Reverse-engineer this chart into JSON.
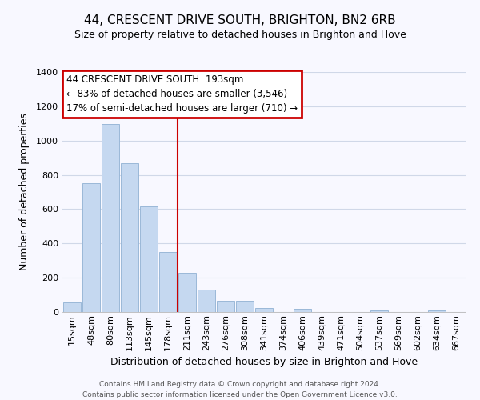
{
  "title": "44, CRESCENT DRIVE SOUTH, BRIGHTON, BN2 6RB",
  "subtitle": "Size of property relative to detached houses in Brighton and Hove",
  "xlabel": "Distribution of detached houses by size in Brighton and Hove",
  "ylabel": "Number of detached properties",
  "bar_labels": [
    "15sqm",
    "48sqm",
    "80sqm",
    "113sqm",
    "145sqm",
    "178sqm",
    "211sqm",
    "243sqm",
    "276sqm",
    "308sqm",
    "341sqm",
    "374sqm",
    "406sqm",
    "439sqm",
    "471sqm",
    "504sqm",
    "537sqm",
    "569sqm",
    "602sqm",
    "634sqm",
    "667sqm"
  ],
  "bar_values": [
    55,
    750,
    1095,
    870,
    615,
    350,
    230,
    130,
    65,
    65,
    25,
    0,
    20,
    0,
    0,
    0,
    10,
    0,
    0,
    10,
    0
  ],
  "bar_color": "#c5d8f0",
  "bar_edge_color": "#9ab8d8",
  "vline_color": "#cc0000",
  "vline_x": 5.5,
  "annotation_title": "44 CRESCENT DRIVE SOUTH: 193sqm",
  "annotation_line1": "← 83% of detached houses are smaller (3,546)",
  "annotation_line2": "17% of semi-detached houses are larger (710) →",
  "annotation_box_color": "#cc0000",
  "annotation_fill": "#ffffff",
  "ylim": [
    0,
    1400
  ],
  "yticks": [
    0,
    200,
    400,
    600,
    800,
    1000,
    1200,
    1400
  ],
  "footer1": "Contains HM Land Registry data © Crown copyright and database right 2024.",
  "footer2": "Contains public sector information licensed under the Open Government Licence v3.0.",
  "bg_color": "#f8f8ff",
  "grid_color": "#d0d8e8",
  "title_fontsize": 11,
  "subtitle_fontsize": 9,
  "xlabel_fontsize": 9,
  "ylabel_fontsize": 9,
  "tick_fontsize": 8,
  "footer_fontsize": 6.5
}
